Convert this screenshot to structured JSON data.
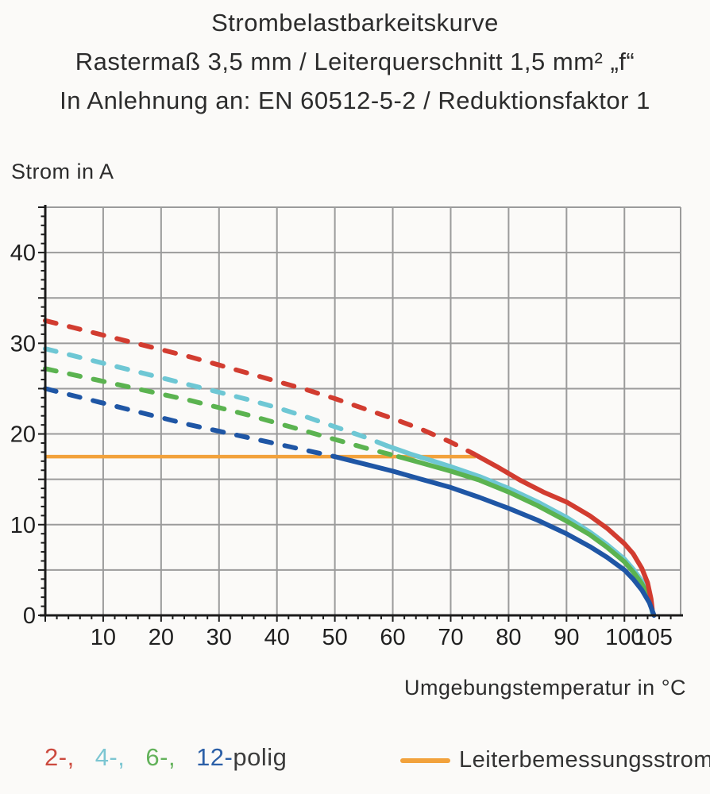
{
  "title": {
    "line1": "Strombelastbarkeitskurve",
    "line2": "Rastermaß 3,5 mm / Leiterquerschnitt 1,5 mm² „f“",
    "line3": "In Anlehnung an: EN 60512-5-2 / Reduktionsfaktor 1"
  },
  "legend": {
    "pole_items": [
      {
        "label": "2-,",
        "color": "#cc4a3e"
      },
      {
        "label": "4-,",
        "color": "#7cc6d2"
      },
      {
        "label": "6-,",
        "color": "#63b25b"
      },
      {
        "label": "12-",
        "color": "#2b5fa7"
      }
    ],
    "polig_label": "polig",
    "rated_label": "Leiterbemessungsstrom",
    "rated_color": "#f2a23c"
  },
  "chart_data": {
    "type": "line",
    "title": "Strombelastbarkeitskurve",
    "x_axis": {
      "label": "Umgebungstemperatur in °C",
      "ticks": [
        10,
        20,
        30,
        40,
        50,
        60,
        70,
        80,
        90,
        100,
        105
      ],
      "range": [
        0,
        109.7
      ],
      "grid_step": 10,
      "minor_step": 2,
      "grid_on": true
    },
    "y_axis": {
      "label": "Strom in A",
      "ticks": [
        0,
        10,
        20,
        30,
        40
      ],
      "range": [
        0,
        45
      ],
      "grid_step": 5,
      "minor_step": 1,
      "grid_on": true
    },
    "rated_current_line": {
      "label": "Leiterbemessungsstrom",
      "value_a": 17.5,
      "x_start": 0,
      "x_end": 74.3,
      "color": "#f2a23c"
    },
    "series": [
      {
        "name": "2-polig",
        "color": "#d23c30",
        "dashed_until": 74,
        "points": [
          [
            0,
            32.5
          ],
          [
            5,
            31.7
          ],
          [
            10,
            30.9
          ],
          [
            15,
            30.1
          ],
          [
            20,
            29.3
          ],
          [
            25,
            28.5
          ],
          [
            30,
            27.6
          ],
          [
            35,
            26.7
          ],
          [
            40,
            25.8
          ],
          [
            45,
            24.9
          ],
          [
            50,
            23.9
          ],
          [
            55,
            22.8
          ],
          [
            60,
            21.7
          ],
          [
            65,
            20.5
          ],
          [
            70,
            19.1
          ],
          [
            74,
            17.8
          ],
          [
            78,
            16.4
          ],
          [
            82,
            14.9
          ],
          [
            86,
            13.6
          ],
          [
            90,
            12.5
          ],
          [
            94,
            11.0
          ],
          [
            97,
            9.6
          ],
          [
            100,
            7.9
          ],
          [
            101.5,
            6.8
          ],
          [
            103,
            5.2
          ],
          [
            104,
            3.6
          ],
          [
            104.6,
            1.8
          ],
          [
            104.8,
            0.7
          ]
        ]
      },
      {
        "name": "4-polig",
        "color": "#6ec7d4",
        "dashed_until": 59,
        "points": [
          [
            0,
            29.4
          ],
          [
            5,
            28.6
          ],
          [
            10,
            27.8
          ],
          [
            15,
            27.0
          ],
          [
            20,
            26.2
          ],
          [
            25,
            25.4
          ],
          [
            30,
            24.6
          ],
          [
            35,
            23.8
          ],
          [
            40,
            22.9
          ],
          [
            45,
            21.9
          ],
          [
            50,
            20.8
          ],
          [
            55,
            19.7
          ],
          [
            59,
            18.7
          ],
          [
            63,
            17.8
          ],
          [
            67,
            17.0
          ],
          [
            70,
            16.4
          ],
          [
            75,
            15.3
          ],
          [
            80,
            14.0
          ],
          [
            85,
            12.5
          ],
          [
            90,
            10.8
          ],
          [
            94,
            9.2
          ],
          [
            97,
            7.8
          ],
          [
            100,
            6.2
          ],
          [
            101.5,
            5.1
          ],
          [
            103,
            3.8
          ],
          [
            104,
            2.4
          ],
          [
            104.6,
            1.1
          ],
          [
            104.8,
            0.3
          ]
        ]
      },
      {
        "name": "6-polig",
        "color": "#5bb350",
        "dashed_until": 61,
        "points": [
          [
            0,
            27.2
          ],
          [
            5,
            26.5
          ],
          [
            10,
            25.8
          ],
          [
            15,
            25.1
          ],
          [
            20,
            24.4
          ],
          [
            25,
            23.7
          ],
          [
            30,
            22.9
          ],
          [
            35,
            22.1
          ],
          [
            40,
            21.2
          ],
          [
            45,
            20.3
          ],
          [
            50,
            19.4
          ],
          [
            55,
            18.5
          ],
          [
            61,
            17.5
          ],
          [
            65,
            16.8
          ],
          [
            70,
            15.9
          ],
          [
            75,
            14.9
          ],
          [
            80,
            13.6
          ],
          [
            85,
            12.1
          ],
          [
            90,
            10.4
          ],
          [
            94,
            8.9
          ],
          [
            97,
            7.5
          ],
          [
            100,
            5.9
          ],
          [
            101.5,
            4.8
          ],
          [
            103,
            3.5
          ],
          [
            104.2,
            2.0
          ],
          [
            104.8,
            0.6
          ]
        ]
      },
      {
        "name": "12-polig",
        "color": "#1f56a5",
        "dashed_until": 50,
        "points": [
          [
            0,
            25.0
          ],
          [
            5,
            24.2
          ],
          [
            10,
            23.4
          ],
          [
            15,
            22.6
          ],
          [
            20,
            21.8
          ],
          [
            25,
            21.0
          ],
          [
            30,
            20.3
          ],
          [
            35,
            19.6
          ],
          [
            40,
            18.9
          ],
          [
            45,
            18.2
          ],
          [
            50,
            17.5
          ],
          [
            55,
            16.7
          ],
          [
            60,
            15.9
          ],
          [
            65,
            15.0
          ],
          [
            70,
            14.1
          ],
          [
            75,
            13.0
          ],
          [
            80,
            11.8
          ],
          [
            85,
            10.5
          ],
          [
            90,
            9.0
          ],
          [
            94,
            7.6
          ],
          [
            97,
            6.4
          ],
          [
            100,
            5.0
          ],
          [
            101.5,
            4.0
          ],
          [
            103,
            2.8
          ],
          [
            104.3,
            1.4
          ],
          [
            105,
            0.2
          ],
          [
            105.1,
            0.0
          ]
        ]
      }
    ],
    "render_order": [
      1,
      2,
      0,
      3
    ]
  }
}
